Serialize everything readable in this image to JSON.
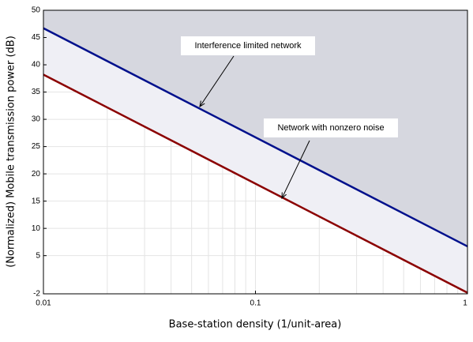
{
  "chart_data": {
    "type": "line",
    "xlabel": "Base-station density (1/unit-area)",
    "ylabel": "(Normalized) Mobile transmission power (dB)",
    "x": [
      0.01,
      1
    ],
    "series": [
      {
        "color": "#00108c",
        "fill": "#d6d7df",
        "values": [
          46.7,
          6.7
        ]
      },
      {
        "color": "#8b0000",
        "fill": "#efeff5",
        "values": [
          38.2,
          -1.8
        ]
      }
    ],
    "xscale": "log",
    "xlim": [
      0.01,
      1
    ],
    "xticks": [
      0.01,
      0.1,
      1
    ],
    "ylim": [
      -2,
      50
    ],
    "yticks": [
      -2,
      5,
      10,
      15,
      20,
      25,
      30,
      35,
      40,
      45,
      50
    ],
    "grid": true,
    "annotations": [
      "Interference limited network",
      "Network with nonzero noise"
    ]
  }
}
